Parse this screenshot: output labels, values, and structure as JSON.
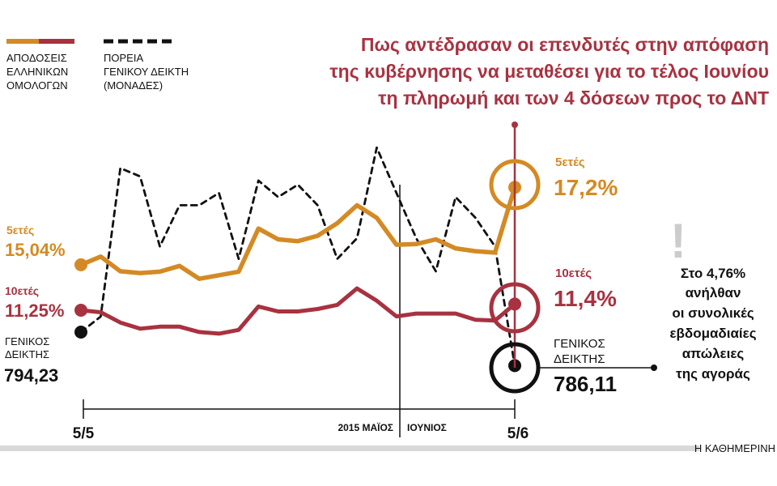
{
  "colors": {
    "bond5": "#d48a24",
    "bond10": "#a83240",
    "index": "#111111",
    "title": "#a83240",
    "note": "#111111",
    "mark": "#cccccc"
  },
  "legend": {
    "bonds": [
      "ΑΠΟΔΟΣΕΙΣ",
      "ΕΛΛΗΝΙΚΩΝ",
      "ΟΜΟΛΟΓΩΝ"
    ],
    "index": [
      "ΠΟΡΕΙΑ",
      "ΓΕΝΙΚΟΥ ΔΕΙΚΤΗ",
      "(ΜΟΝΑΔΕΣ)"
    ]
  },
  "title": [
    "Πως αντέδρασαν οι  επενδυτές στην απόφαση",
    "της κυβέρνησης να μεταθέσει για το τέλος Ιουνίου",
    "τη πληρωμή και των 4 δόσεων προς το ΔΝΤ"
  ],
  "labels": {
    "start_5y_name": "5ετές",
    "start_5y_value": "15,04%",
    "start_10y_name": "10ετές",
    "start_10y_value": "11,25%",
    "start_index_name": [
      "ΓΕΝΙΚΟΣ",
      "ΔΕΙΚΤΗΣ"
    ],
    "start_index_value": "794,23",
    "end_5y_name": "5ετές",
    "end_5y_value": "17,2%",
    "end_10y_name": "10ετές",
    "end_10y_value": "11,4%",
    "end_index_name": [
      "ΓΕΝΙΚΟΣ",
      "ΔΕΙΚΤΗΣ"
    ],
    "end_index_value": "786,11"
  },
  "note": [
    "Στο 4,76%",
    "ανήλθαν",
    "οι συνολικές",
    "εβδομαδιαίες",
    "απώλειες",
    "της αγοράς"
  ],
  "note_mark": "!",
  "axis": {
    "start": "5/5",
    "end": "5/6",
    "month1": "2015 ΜΑΪΟΣ",
    "month2": "ΙΟΥΝΙΟΣ"
  },
  "credit": "Η ΚΑΘΗΜΕΡΙΝΗ",
  "chart_data": {
    "type": "line",
    "title": "Πως αντέδρασαν οι επενδυτές στην απόφαση της κυβέρνησης να μεταθέσει για το τέλος Ιουνίου τη πληρωμή και των 4 δόσεων προς το ΔΝΤ",
    "x_range": [
      "5/5",
      "5/6"
    ],
    "month_divider_index": 18,
    "series": [
      {
        "name": "5ετές",
        "unit": "%",
        "start": 15.04,
        "end": 17.2,
        "values": [
          15.04,
          15.27,
          14.86,
          14.81,
          14.85,
          15.01,
          14.65,
          14.75,
          14.85,
          16.05,
          15.75,
          15.7,
          15.85,
          16.2,
          16.7,
          16.35,
          15.6,
          15.62,
          15.75,
          15.5,
          15.42,
          15.38,
          17.2
        ]
      },
      {
        "name": "10ετές",
        "unit": "%",
        "start": 11.25,
        "end": 11.4,
        "values": [
          11.25,
          11.2,
          10.95,
          10.8,
          10.85,
          10.85,
          10.72,
          10.68,
          10.77,
          11.34,
          11.22,
          11.22,
          11.28,
          11.38,
          11.78,
          11.48,
          11.1,
          11.17,
          11.17,
          11.17,
          11.02,
          11.0,
          11.4
        ]
      },
      {
        "name": "Γενικός Δείκτης",
        "unit": "μονάδες",
        "start": 794.23,
        "end": 786.11,
        "values": [
          794.23,
          798,
          834,
          832,
          815,
          825,
          825,
          828,
          812,
          831,
          827,
          830,
          825,
          812,
          817,
          839,
          828,
          817,
          809,
          827,
          822,
          815,
          786.11
        ]
      }
    ]
  }
}
